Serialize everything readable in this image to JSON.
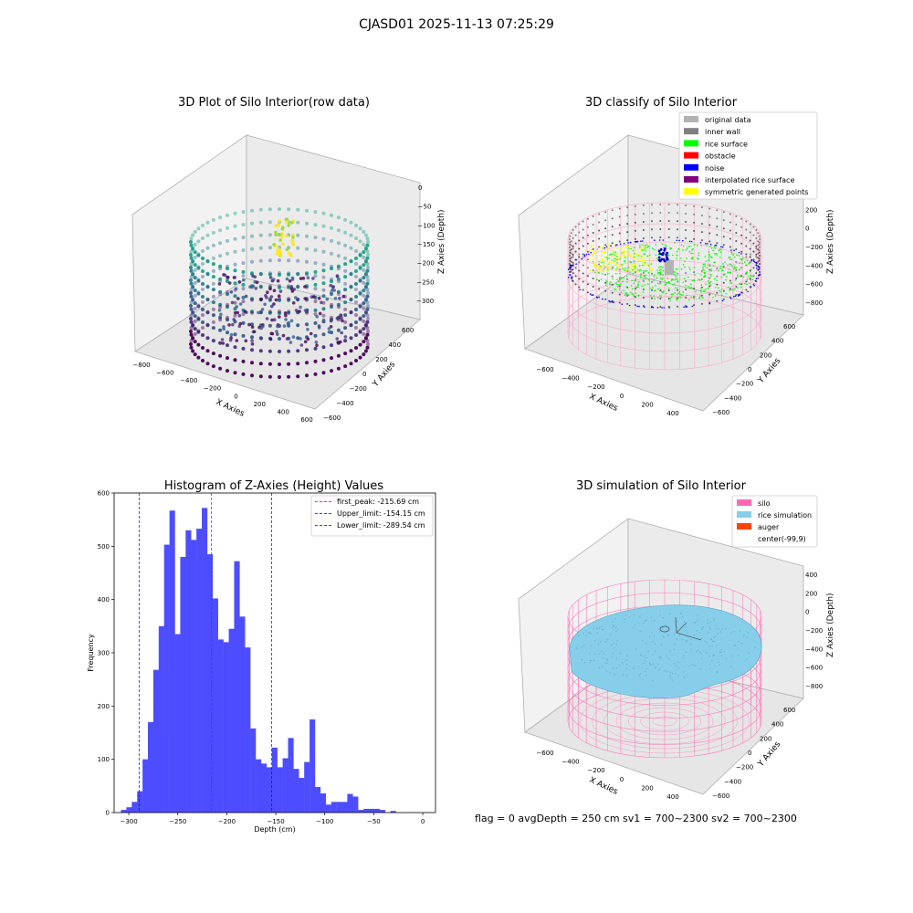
{
  "figure": {
    "suptitle": "CJASD01 2025-11-13 07:25:29",
    "status_line": "flag = 0     avgDepth = 250 cm  sv1 = 700~2300  sv2 = 700~2300"
  },
  "panels": {
    "raw": {
      "title": "3D Plot of Silo Interior(row data)",
      "xlabel": "X Axies",
      "ylabel": "Y Axies",
      "zlabel": "Z Axies (Depth)",
      "xticks": [
        "−800",
        "−600",
        "−400",
        "−200",
        "0",
        "200",
        "400",
        "600"
      ],
      "yticks": [
        "−600",
        "−400",
        "−200",
        "0",
        "200",
        "400",
        "600"
      ],
      "zticks": [
        "0",
        "−50",
        "−100",
        "−150",
        "−200",
        "−250",
        "−300"
      ]
    },
    "classify": {
      "title": "3D classify of Silo Interior",
      "xlabel": "X Axies",
      "ylabel": "Y Axies",
      "zlabel": "Z Axies (Depth)",
      "xticks": [
        "−600",
        "−400",
        "−200",
        "0",
        "200",
        "400"
      ],
      "yticks": [
        "−600",
        "−400",
        "−200",
        "0",
        "200",
        "400",
        "600"
      ],
      "zticks": [
        "400",
        "200",
        "0",
        "−200",
        "−400",
        "−600",
        "−800"
      ],
      "legend": [
        {
          "label": "original data",
          "color": "#b3b3b3"
        },
        {
          "label": "inner wall",
          "color": "#808080"
        },
        {
          "label": "rice surface",
          "color": "#00ff00"
        },
        {
          "label": "obstacle",
          "color": "#ff0000"
        },
        {
          "label": "noise",
          "color": "#0000ff"
        },
        {
          "label": "interpolated rice surface",
          "color": "#800080"
        },
        {
          "label": "symmetric generated points",
          "color": "#ffff00"
        }
      ]
    },
    "simulation": {
      "title": "3D simulation of Silo Interior",
      "xlabel": "X Axies",
      "ylabel": "Y Axies",
      "zlabel": "Z Axies (Depth)",
      "xticks": [
        "−600",
        "−400",
        "−200",
        "0",
        "200",
        "400"
      ],
      "yticks": [
        "−600",
        "−400",
        "−200",
        "0",
        "200",
        "400",
        "600"
      ],
      "zticks": [
        "400",
        "200",
        "0",
        "−200",
        "−400",
        "−600",
        "−800"
      ],
      "legend": [
        {
          "label": "silo",
          "color": "#ff69b4"
        },
        {
          "label": "rice simulation",
          "color": "#87ceeb"
        },
        {
          "label": "auger",
          "color": "#ff4500"
        },
        {
          "label": "center(-99,9)",
          "color": ""
        }
      ]
    }
  },
  "chart_data": {
    "type": "bar",
    "title": "Histogram of Z-Axies (Height) Values",
    "xlabel": "Depth (cm)",
    "ylabel": "Frequency",
    "xlim": [
      -315,
      13
    ],
    "ylim": [
      0,
      600
    ],
    "xticks": [
      -300,
      -250,
      -200,
      -150,
      -100,
      -50,
      0
    ],
    "yticks": [
      0,
      100,
      200,
      300,
      400,
      500,
      600
    ],
    "bin_start": -308,
    "bin_width": 5.5,
    "values": [
      5,
      10,
      20,
      40,
      100,
      170,
      268,
      350,
      503,
      567,
      335,
      480,
      530,
      512,
      533,
      572,
      485,
      402,
      325,
      320,
      345,
      472,
      368,
      310,
      158,
      100,
      92,
      85,
      122,
      85,
      102,
      140,
      82,
      65,
      95,
      175,
      48,
      36,
      15,
      20,
      20,
      20,
      35,
      30,
      5,
      7,
      7,
      7,
      5,
      0,
      3,
      0
    ],
    "vlines": [
      {
        "label": "first_peak: -215.69 cm",
        "x": -215.69,
        "color": "#ff0000"
      },
      {
        "label": "Upper_limit: -154.15 cm",
        "x": -154.15,
        "color": "#0000ff"
      },
      {
        "label": "Lower_limit: -289.54 cm",
        "x": -289.54,
        "color": "#0000ff"
      }
    ],
    "bar_color": "#4d4dff",
    "legend_position": "top-right"
  }
}
